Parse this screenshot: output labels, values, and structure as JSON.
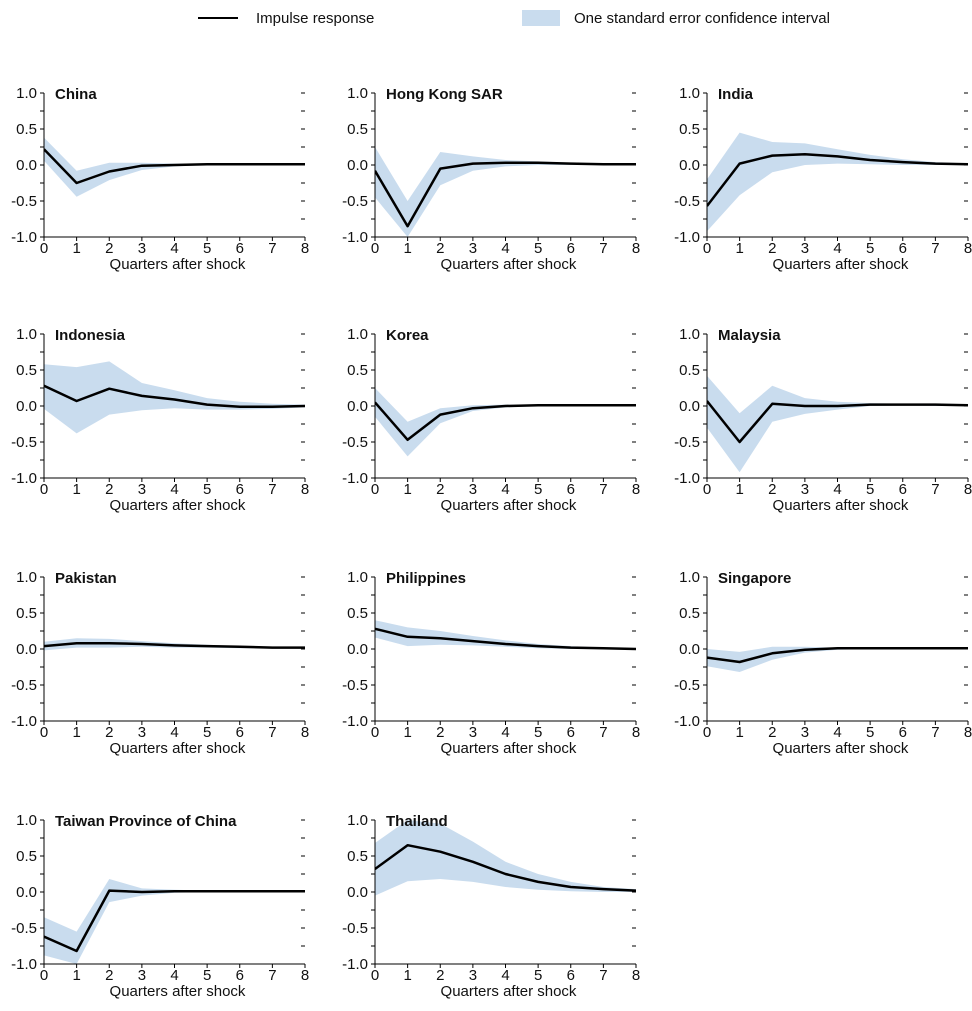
{
  "legend": {
    "line_label": "Impulse response",
    "band_label": "One standard error confidence interval"
  },
  "colors": {
    "line": "#000000",
    "band": "#c9dcee"
  },
  "chart_data": [
    {
      "type": "line",
      "title": "China",
      "xlabel": "Quarters after shock",
      "ylabel": "",
      "xlim": [
        0,
        8
      ],
      "ylim": [
        -1.0,
        1.0
      ],
      "x": [
        0,
        1,
        2,
        3,
        4,
        5,
        6,
        7,
        8
      ],
      "series": [
        {
          "values": [
            0.22,
            -0.25,
            -0.09,
            -0.01,
            0.0,
            0.01,
            0.01,
            0.01,
            0.01
          ]
        }
      ],
      "band_upper": [
        0.38,
        -0.08,
        0.03,
        0.03,
        0.02,
        0.02,
        0.01,
        0.01,
        0.01
      ],
      "band_lower": [
        0.06,
        -0.44,
        -0.21,
        -0.07,
        -0.02,
        0.0,
        0.0,
        0.0,
        0.0
      ]
    },
    {
      "type": "line",
      "title": "Hong Kong SAR",
      "xlabel": "Quarters after shock",
      "ylabel": "",
      "xlim": [
        0,
        8
      ],
      "ylim": [
        -1.0,
        1.0
      ],
      "x": [
        0,
        1,
        2,
        3,
        4,
        5,
        6,
        7,
        8
      ],
      "series": [
        {
          "values": [
            -0.08,
            -0.85,
            -0.05,
            0.02,
            0.03,
            0.03,
            0.02,
            0.01,
            0.01
          ]
        }
      ],
      "band_upper": [
        0.25,
        -0.5,
        0.18,
        0.12,
        0.07,
        0.05,
        0.03,
        0.02,
        0.02
      ],
      "band_lower": [
        -0.45,
        -1.0,
        -0.28,
        -0.08,
        -0.02,
        0.0,
        0.0,
        0.0,
        0.0
      ]
    },
    {
      "type": "line",
      "title": "India",
      "xlabel": "Quarters after shock",
      "ylabel": "",
      "xlim": [
        0,
        8
      ],
      "ylim": [
        -1.0,
        1.0
      ],
      "x": [
        0,
        1,
        2,
        3,
        4,
        5,
        6,
        7,
        8
      ],
      "series": [
        {
          "values": [
            -0.57,
            0.02,
            0.13,
            0.15,
            0.12,
            0.07,
            0.04,
            0.02,
            0.01
          ]
        }
      ],
      "band_upper": [
        -0.2,
        0.45,
        0.32,
        0.3,
        0.22,
        0.14,
        0.08,
        0.04,
        0.02
      ],
      "band_lower": [
        -0.92,
        -0.42,
        -0.1,
        0.0,
        0.02,
        0.01,
        0.0,
        0.0,
        0.0
      ]
    },
    {
      "type": "line",
      "title": "Indonesia",
      "xlabel": "Quarters after shock",
      "ylabel": "",
      "xlim": [
        0,
        8
      ],
      "ylim": [
        -1.0,
        1.0
      ],
      "x": [
        0,
        1,
        2,
        3,
        4,
        5,
        6,
        7,
        8
      ],
      "series": [
        {
          "values": [
            0.28,
            0.07,
            0.24,
            0.14,
            0.09,
            0.02,
            -0.01,
            -0.01,
            0.0
          ]
        }
      ],
      "band_upper": [
        0.58,
        0.54,
        0.62,
        0.32,
        0.22,
        0.11,
        0.06,
        0.03,
        0.02
      ],
      "band_lower": [
        -0.04,
        -0.38,
        -0.12,
        -0.06,
        -0.03,
        -0.05,
        -0.05,
        -0.04,
        -0.02
      ]
    },
    {
      "type": "line",
      "title": "Korea",
      "xlabel": "Quarters after shock",
      "ylabel": "",
      "xlim": [
        0,
        8
      ],
      "ylim": [
        -1.0,
        1.0
      ],
      "x": [
        0,
        1,
        2,
        3,
        4,
        5,
        6,
        7,
        8
      ],
      "series": [
        {
          "values": [
            0.05,
            -0.47,
            -0.12,
            -0.03,
            0.0,
            0.01,
            0.01,
            0.01,
            0.01
          ]
        }
      ],
      "band_upper": [
        0.25,
        -0.22,
        -0.03,
        0.01,
        0.02,
        0.02,
        0.02,
        0.02,
        0.01
      ],
      "band_lower": [
        -0.15,
        -0.7,
        -0.24,
        -0.07,
        -0.02,
        0.0,
        0.0,
        0.0,
        0.0
      ]
    },
    {
      "type": "line",
      "title": "Malaysia",
      "xlabel": "Quarters after shock",
      "ylabel": "",
      "xlim": [
        0,
        8
      ],
      "ylim": [
        -1.0,
        1.0
      ],
      "x": [
        0,
        1,
        2,
        3,
        4,
        5,
        6,
        7,
        8
      ],
      "series": [
        {
          "values": [
            0.07,
            -0.5,
            0.03,
            0.0,
            0.0,
            0.02,
            0.02,
            0.02,
            0.01
          ]
        }
      ],
      "band_upper": [
        0.42,
        -0.1,
        0.28,
        0.11,
        0.06,
        0.04,
        0.03,
        0.02,
        0.02
      ],
      "band_lower": [
        -0.3,
        -0.92,
        -0.22,
        -0.11,
        -0.05,
        0.0,
        0.01,
        0.0,
        0.0
      ]
    },
    {
      "type": "line",
      "title": "Pakistan",
      "xlabel": "Quarters after shock",
      "ylabel": "",
      "xlim": [
        0,
        8
      ],
      "ylim": [
        -1.0,
        1.0
      ],
      "x": [
        0,
        1,
        2,
        3,
        4,
        5,
        6,
        7,
        8
      ],
      "series": [
        {
          "values": [
            0.04,
            0.08,
            0.08,
            0.07,
            0.05,
            0.04,
            0.03,
            0.02,
            0.02
          ]
        }
      ],
      "band_upper": [
        0.1,
        0.15,
        0.14,
        0.11,
        0.08,
        0.06,
        0.04,
        0.03,
        0.02
      ],
      "band_lower": [
        -0.02,
        0.02,
        0.02,
        0.03,
        0.02,
        0.02,
        0.01,
        0.01,
        0.01
      ]
    },
    {
      "type": "line",
      "title": "Philippines",
      "xlabel": "Quarters after shock",
      "ylabel": "",
      "xlim": [
        0,
        8
      ],
      "ylim": [
        -1.0,
        1.0
      ],
      "x": [
        0,
        1,
        2,
        3,
        4,
        5,
        6,
        7,
        8
      ],
      "series": [
        {
          "values": [
            0.28,
            0.17,
            0.15,
            0.11,
            0.07,
            0.04,
            0.02,
            0.01,
            0.0
          ]
        }
      ],
      "band_upper": [
        0.4,
        0.3,
        0.25,
        0.18,
        0.12,
        0.07,
        0.04,
        0.02,
        0.01
      ],
      "band_lower": [
        0.16,
        0.04,
        0.06,
        0.05,
        0.03,
        0.01,
        0.0,
        0.0,
        0.0
      ]
    },
    {
      "type": "line",
      "title": "Singapore",
      "xlabel": "Quarters after shock",
      "ylabel": "",
      "xlim": [
        0,
        8
      ],
      "ylim": [
        -1.0,
        1.0
      ],
      "x": [
        0,
        1,
        2,
        3,
        4,
        5,
        6,
        7,
        8
      ],
      "series": [
        {
          "values": [
            -0.12,
            -0.18,
            -0.06,
            -0.01,
            0.01,
            0.01,
            0.01,
            0.01,
            0.01
          ]
        }
      ],
      "band_upper": [
        0.0,
        -0.04,
        0.03,
        0.03,
        0.02,
        0.02,
        0.01,
        0.01,
        0.01
      ],
      "band_lower": [
        -0.24,
        -0.32,
        -0.15,
        -0.05,
        -0.01,
        0.0,
        0.0,
        0.0,
        0.0
      ]
    },
    {
      "type": "line",
      "title": "Taiwan Province of China",
      "xlabel": "Quarters after shock",
      "ylabel": "",
      "xlim": [
        0,
        8
      ],
      "ylim": [
        -1.0,
        1.0
      ],
      "x": [
        0,
        1,
        2,
        3,
        4,
        5,
        6,
        7,
        8
      ],
      "series": [
        {
          "values": [
            -0.62,
            -0.82,
            0.02,
            0.0,
            0.01,
            0.01,
            0.01,
            0.01,
            0.01
          ]
        }
      ],
      "band_upper": [
        -0.35,
        -0.55,
        0.18,
        0.05,
        0.03,
        0.02,
        0.02,
        0.01,
        0.01
      ],
      "band_lower": [
        -0.88,
        -1.0,
        -0.14,
        -0.05,
        -0.01,
        0.0,
        0.0,
        0.0,
        0.0
      ]
    },
    {
      "type": "line",
      "title": "Thailand",
      "xlabel": "Quarters after shock",
      "ylabel": "",
      "xlim": [
        0,
        8
      ],
      "ylim": [
        -1.0,
        1.0
      ],
      "x": [
        0,
        1,
        2,
        3,
        4,
        5,
        6,
        7,
        8
      ],
      "series": [
        {
          "values": [
            0.32,
            0.65,
            0.56,
            0.42,
            0.25,
            0.14,
            0.07,
            0.04,
            0.02
          ]
        }
      ],
      "band_upper": [
        0.68,
        1.0,
        0.95,
        0.7,
        0.42,
        0.25,
        0.14,
        0.07,
        0.04
      ],
      "band_lower": [
        -0.05,
        0.15,
        0.18,
        0.14,
        0.07,
        0.03,
        0.01,
        0.0,
        0.0
      ]
    }
  ]
}
